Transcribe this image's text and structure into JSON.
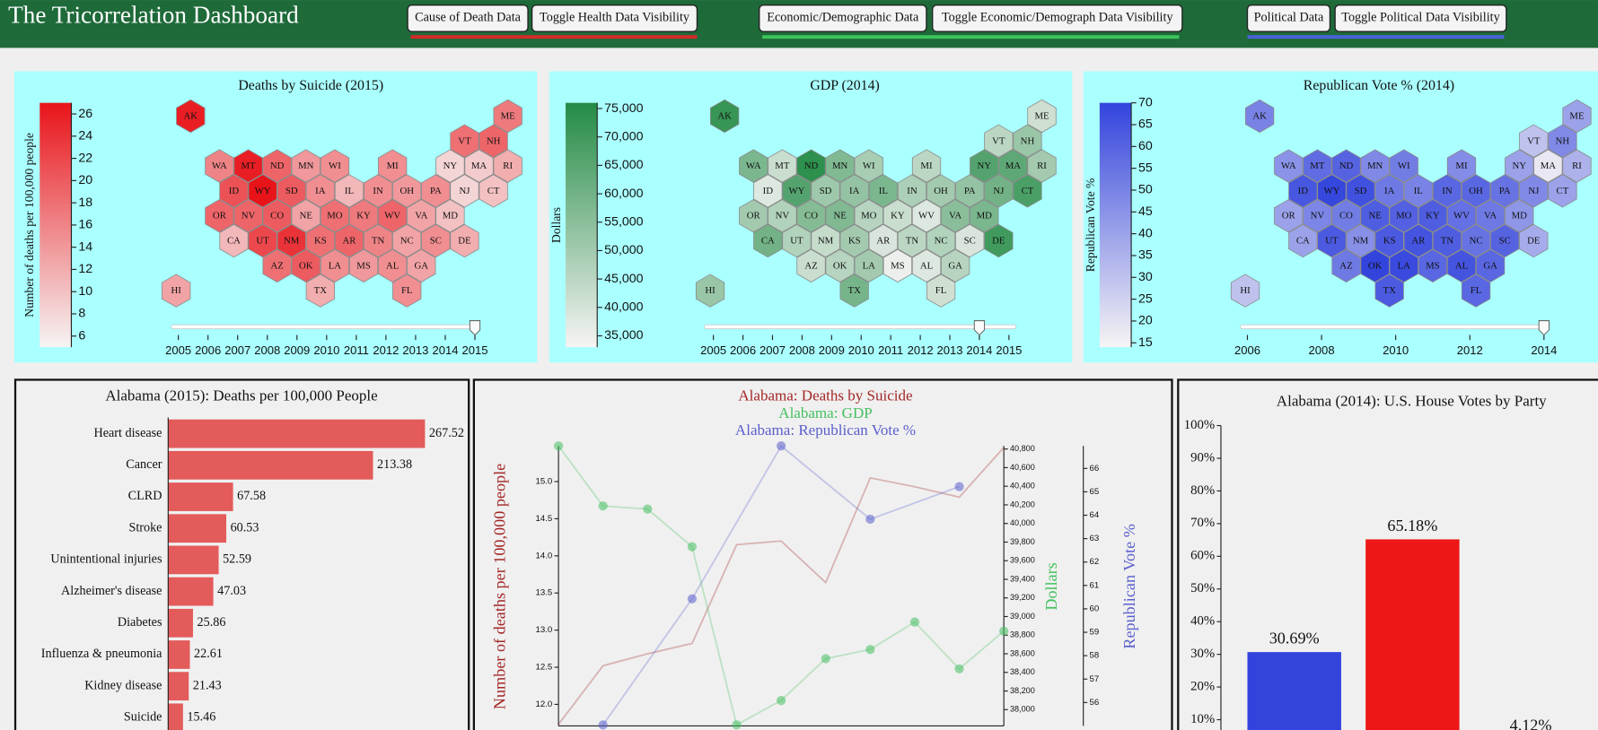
{
  "header": {
    "title": "The Tricorrelation Dashboard",
    "groups": [
      {
        "color": "#d42a2a",
        "buttons": [
          "Cause of Death Data",
          "Toggle Health Data Visibility"
        ]
      },
      {
        "color": "#3cc45a",
        "buttons": [
          "Economic/Demographic Data",
          "Toggle Economic/Demograph Data Visibility"
        ]
      },
      {
        "color": "#4a63d8",
        "buttons": [
          "Political Data",
          "Toggle Political Data Visibility"
        ]
      }
    ]
  },
  "chart_data": [
    {
      "type": "hexmap",
      "title": "Deaths by Suicide (2015)",
      "color": "#e8141a",
      "states": [
        "AK",
        "ME",
        "VT",
        "NH",
        "WA",
        "MT",
        "ND",
        "MN",
        "WI",
        "MI",
        "NY",
        "MA",
        "RI",
        "ID",
        "WY",
        "SD",
        "IA",
        "IL",
        "IN",
        "OH",
        "PA",
        "NJ",
        "CT",
        "OR",
        "NV",
        "CO",
        "NE",
        "MO",
        "KY",
        "WV",
        "VA",
        "MD",
        "CA",
        "UT",
        "NM",
        "KS",
        "AR",
        "TN",
        "NC",
        "SC",
        "DE",
        "AZ",
        "OK",
        "LA",
        "MS",
        "AL",
        "GA",
        "HI",
        "TX",
        "FL"
      ],
      "values": [
        26,
        17,
        18,
        19,
        16,
        26,
        19,
        14,
        15,
        15,
        8,
        9,
        12,
        21,
        27,
        20,
        15,
        11,
        15,
        14,
        15,
        8,
        10,
        19,
        19,
        20,
        13,
        18,
        17,
        19,
        13,
        10,
        11,
        22,
        24,
        18,
        19,
        16,
        13,
        15,
        12,
        18,
        20,
        15,
        14,
        15,
        13,
        13,
        12,
        15
      ],
      "clabel": "Number of deaths per 100,000 people",
      "clim": [
        5,
        27
      ],
      "cticks": [
        6,
        8,
        10,
        12,
        14,
        16,
        18,
        20,
        22,
        24,
        26
      ],
      "slider": {
        "xlim": [
          2005,
          2015
        ],
        "xticks": [
          2005,
          2006,
          2007,
          2008,
          2009,
          2010,
          2011,
          2012,
          2013,
          2014,
          2015
        ],
        "value": 2015
      }
    },
    {
      "type": "hexmap",
      "title": "GDP (2014)",
      "color": "#238b45",
      "states": [
        "AK",
        "ME",
        "VT",
        "NH",
        "WA",
        "MT",
        "ND",
        "MN",
        "WI",
        "MI",
        "NY",
        "MA",
        "RI",
        "ID",
        "WY",
        "SD",
        "IA",
        "IL",
        "IN",
        "OH",
        "PA",
        "NJ",
        "CT",
        "OR",
        "NV",
        "CO",
        "NE",
        "MO",
        "KY",
        "WV",
        "VA",
        "MD",
        "CA",
        "UT",
        "NM",
        "KS",
        "AR",
        "TN",
        "NC",
        "SC",
        "DE",
        "AZ",
        "OK",
        "LA",
        "MS",
        "AL",
        "GA",
        "HI",
        "TX",
        "FL"
      ],
      "values": [
        72000,
        41000,
        45000,
        52000,
        58000,
        42000,
        74000,
        57000,
        49000,
        45000,
        66000,
        64000,
        50000,
        38000,
        66000,
        51000,
        53000,
        58000,
        48000,
        50000,
        53000,
        60000,
        68000,
        50000,
        47000,
        56000,
        57000,
        46000,
        42000,
        38000,
        55000,
        58000,
        60000,
        47000,
        43000,
        50000,
        39000,
        45000,
        47000,
        39000,
        70000,
        42000,
        46000,
        50000,
        35000,
        38000,
        46000,
        52000,
        59000,
        41000
      ],
      "clabel": "Dollars",
      "clim": [
        33000,
        76000
      ],
      "cticks": [
        {
          "value": 35000,
          "label": "35,000"
        },
        {
          "value": 40000,
          "label": "40,000"
        },
        {
          "value": 45000,
          "label": "45,000"
        },
        {
          "value": 50000,
          "label": "50,000"
        },
        {
          "value": 55000,
          "label": "55,000"
        },
        {
          "value": 60000,
          "label": "60,000"
        },
        {
          "value": 65000,
          "label": "65,000"
        },
        {
          "value": 70000,
          "label": "70,000"
        },
        {
          "value": 75000,
          "label": "75,000"
        }
      ],
      "slider": {
        "xlim": [
          2005,
          2015
        ],
        "xticks": [
          2005,
          2006,
          2007,
          2008,
          2009,
          2010,
          2011,
          2012,
          2013,
          2014,
          2015
        ],
        "value": 2014
      }
    },
    {
      "type": "hexmap",
      "title": "Republican Vote % (2014)",
      "color": "#3344dd",
      "states": [
        "AK",
        "ME",
        "VT",
        "NH",
        "WA",
        "MT",
        "ND",
        "MN",
        "WI",
        "MI",
        "NY",
        "MA",
        "RI",
        "ID",
        "WY",
        "SD",
        "IA",
        "IL",
        "IN",
        "OH",
        "PA",
        "NJ",
        "CT",
        "OR",
        "NV",
        "CO",
        "NE",
        "MO",
        "KY",
        "WV",
        "VA",
        "MD",
        "CA",
        "UT",
        "NM",
        "KS",
        "AR",
        "TN",
        "NC",
        "SC",
        "DE",
        "AZ",
        "OK",
        "LA",
        "MS",
        "AL",
        "GA",
        "HI",
        "TX",
        "FL"
      ],
      "values": [
        50,
        40,
        30,
        48,
        45,
        57,
        60,
        48,
        52,
        47,
        40,
        18,
        35,
        64,
        69,
        66,
        53,
        50,
        59,
        59,
        55,
        48,
        40,
        40,
        49,
        52,
        62,
        61,
        62,
        56,
        53,
        44,
        40,
        63,
        46,
        63,
        65,
        62,
        55,
        60,
        37,
        53,
        70,
        68,
        59,
        65,
        59,
        30,
        63,
        59
      ],
      "clabel": "Republican Vote %",
      "clim": [
        14,
        70
      ],
      "cticks": [
        15,
        20,
        25,
        30,
        35,
        40,
        45,
        50,
        55,
        60,
        65,
        70
      ],
      "slider": {
        "xlim": [
          2006,
          2014
        ],
        "xticks": [
          2006,
          2008,
          2010,
          2012,
          2014
        ],
        "value": 2014
      }
    },
    {
      "type": "barh",
      "title": "Alabama (2015): Deaths per 100,000 People",
      "color": "#e35b5b",
      "categories": [
        "Heart disease",
        "Cancer",
        "CLRD",
        "Stroke",
        "Unintentional injuries",
        "Alzheimer's disease",
        "Diabetes",
        "Influenza & pneumonia",
        "Kidney disease",
        "Suicide"
      ],
      "values": [
        267.52,
        213.38,
        67.58,
        60.53,
        52.59,
        47.03,
        25.86,
        22.61,
        21.43,
        15.46
      ],
      "xlim": [
        0,
        267.52
      ]
    },
    {
      "type": "line",
      "xlim": [
        2005,
        2015
      ],
      "ylabel": "Number of deaths per 100,000 people",
      "ylim": [
        11.71,
        15.48
      ],
      "yticks": [
        {
          "value": 12,
          "label": "12.0"
        },
        12.5,
        {
          "value": 13,
          "label": "13.0"
        },
        13.5,
        {
          "value": 14,
          "label": "14.0"
        },
        14.5,
        {
          "value": 15,
          "label": "15.0"
        }
      ],
      "y2label": "Dollars",
      "y2lim": [
        37825,
        40833
      ],
      "y2ticks": [
        {
          "value": 38000,
          "label": "38,000"
        },
        {
          "value": 38200,
          "label": "38,200"
        },
        {
          "value": 38400,
          "label": "38,400"
        },
        {
          "value": 38600,
          "label": "38,600"
        },
        {
          "value": 38800,
          "label": "38,800"
        },
        {
          "value": 39000,
          "label": "39,000"
        },
        {
          "value": 39200,
          "label": "39,200"
        },
        {
          "value": 39400,
          "label": "39,400"
        },
        {
          "value": 39600,
          "label": "39,600"
        },
        {
          "value": 39800,
          "label": "39,800"
        },
        {
          "value": 40000,
          "label": "40,000"
        },
        {
          "value": 40200,
          "label": "40,200"
        },
        {
          "value": 40400,
          "label": "40,400"
        },
        {
          "value": 40600,
          "label": "40,600"
        },
        {
          "value": 40800,
          "label": "40,800"
        }
      ],
      "y3label": "Republican Vote %",
      "y3lim": [
        55,
        66.96
      ],
      "y3ticks": [
        56,
        57,
        58,
        59,
        60,
        61,
        62,
        63,
        64,
        65,
        66
      ],
      "series": [
        {
          "name": "Alabama: Deaths by Suicide",
          "color": "#a32626",
          "axis": "y",
          "markers": false,
          "x": [
            2005,
            2006,
            2007,
            2008,
            2009,
            2010,
            2011,
            2012,
            2013,
            2014,
            2015
          ],
          "values": [
            11.73,
            12.52,
            12.68,
            12.82,
            14.15,
            14.2,
            13.64,
            15.05,
            14.93,
            14.79,
            15.46
          ]
        },
        {
          "name": "Alabama: GDP",
          "color": "#45c060",
          "axis": "y2",
          "markers": true,
          "x": [
            2005,
            2006,
            2007,
            2008,
            2009,
            2010,
            2011,
            2012,
            2013,
            2014,
            2015
          ],
          "values": [
            40833,
            40188,
            40155,
            39750,
            37836,
            38098,
            38547,
            38646,
            38941,
            38438,
            38843
          ]
        },
        {
          "name": "Alabama: Republican Vote %",
          "color": "#5a5fcc",
          "axis": "y3",
          "markers": true,
          "x": [
            2006,
            2008,
            2010,
            2012,
            2014
          ],
          "values": [
            55.04,
            60.43,
            66.96,
            63.83,
            65.22
          ]
        }
      ]
    },
    {
      "type": "bar",
      "title": "Alabama (2014): U.S. House Votes by Party",
      "categories": [
        null,
        null,
        null
      ],
      "values": [
        30.69,
        65.18,
        4.12
      ],
      "value_labels": [
        "30.69%",
        "65.18%",
        "4.12%"
      ],
      "colors": [
        "#3344dd",
        "#ee1616",
        "#999999"
      ],
      "ylim": [
        0,
        100
      ],
      "yticks": [
        {
          "value": 10,
          "label": "10%"
        },
        {
          "value": 20,
          "label": "20%"
        },
        {
          "value": 30,
          "label": "30%"
        },
        {
          "value": 40,
          "label": "40%"
        },
        {
          "value": 50,
          "label": "50%"
        },
        {
          "value": 60,
          "label": "60%"
        },
        {
          "value": 70,
          "label": "70%"
        },
        {
          "value": 80,
          "label": "80%"
        },
        {
          "value": 90,
          "label": "90%"
        },
        {
          "value": 100,
          "label": "100%"
        }
      ]
    }
  ]
}
